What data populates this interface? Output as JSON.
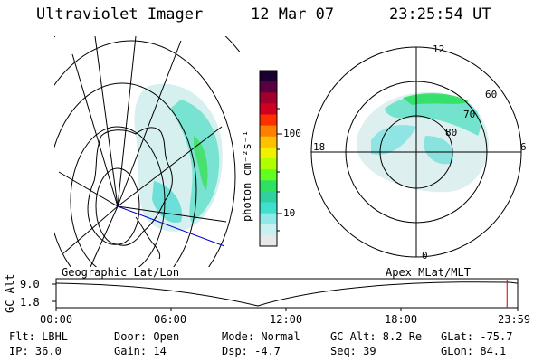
{
  "header": {
    "instrument": "Ultraviolet Imager",
    "date": "12 Mar 07",
    "time": "23:25:54 UT"
  },
  "colorbar": {
    "unit_label": "photon cm⁻²s⁻¹",
    "ticks": [
      "100",
      "10"
    ],
    "colors": [
      "#1a0030",
      "#5a0040",
      "#a00030",
      "#d00020",
      "#ff3000",
      "#ff8000",
      "#ffc000",
      "#f0f000",
      "#b0ff00",
      "#60ff20",
      "#30e060",
      "#30d0a0",
      "#40e0d0",
      "#90e8e8",
      "#c8f0f0",
      "#e8e8e8"
    ]
  },
  "left_map": {
    "label": "Geographic Lat/Lon"
  },
  "right_map": {
    "label": "Apex MLat/MLT",
    "mlt_labels": {
      "top": "12",
      "bottom": "0",
      "left": "18",
      "right": "6"
    },
    "lat_labels": [
      "60",
      "70",
      "80"
    ]
  },
  "altitude_plot": {
    "ylabel": "GC Alt",
    "yticks": [
      "9.0",
      "1.8"
    ],
    "xticks": [
      "00:00",
      "06:00",
      "12:00",
      "18:00",
      "23:59"
    ],
    "current_marker_hours": 23.43,
    "marker_color": "#d00000"
  },
  "status": {
    "row1": {
      "flt": "Flt: LBHL",
      "door": "Door: Open",
      "mode": "Mode: Normal",
      "gc_alt": "GC Alt: 8.2 Re",
      "glat": "GLat: -75.7"
    },
    "row2": {
      "ip": "IP: 36.0",
      "gain": "Gain: 14",
      "dsp": "Dsp:   -4.7",
      "seq": "Seq: 39",
      "glon": "GLon:  84.1"
    }
  }
}
